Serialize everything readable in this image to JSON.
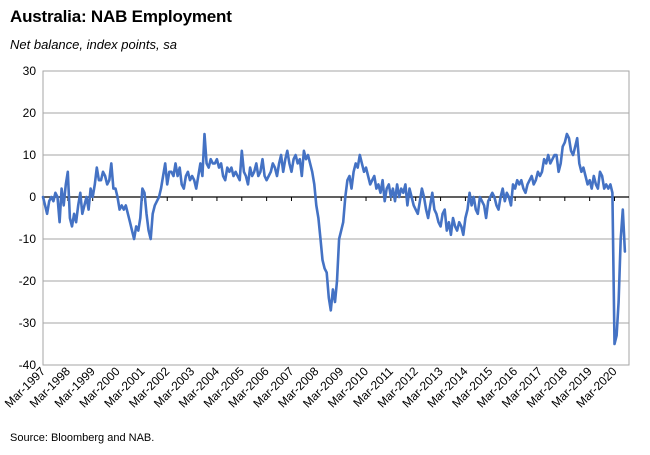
{
  "title": "Australia: NAB Employment",
  "subtitle": "Net balance, index points, sa",
  "source": "Source: Bloomberg and NAB.",
  "chart_data": {
    "type": "line",
    "title": "Australia: NAB Employment",
    "subtitle": "Net balance, index points, sa",
    "xlabel": "",
    "ylabel": "",
    "ylim": [
      -40,
      30
    ],
    "yticks": [
      -40,
      -30,
      -20,
      -10,
      0,
      10,
      20,
      30
    ],
    "xlim": [
      "1997-03",
      "2020-10"
    ],
    "grid": true,
    "legend": "none",
    "color": "#4472C4",
    "x_tick_labels": [
      "Mar-1997",
      "Mar-1998",
      "Mar-1999",
      "Mar-2000",
      "Mar-2001",
      "Mar-2002",
      "Mar-2003",
      "Mar-2004",
      "Mar-2005",
      "Mar-2006",
      "Mar-2007",
      "Mar-2008",
      "Mar-2009",
      "Mar-2010",
      "Mar-2011",
      "Mar-2012",
      "Mar-2013",
      "Mar-2014",
      "Mar-2015",
      "Mar-2016",
      "Mar-2017",
      "Mar-2018",
      "Mar-2019",
      "Mar-2020"
    ],
    "series": [
      {
        "start": "1997-03",
        "frequency": "monthly",
        "values": [
          0,
          -2,
          -4,
          -1,
          0,
          -1,
          1,
          0,
          -6,
          2,
          -2,
          3,
          6,
          -5,
          -7,
          -4,
          -6,
          -2,
          1,
          -4,
          -2,
          0,
          -3,
          2,
          0,
          3,
          7,
          4,
          4,
          6,
          5,
          3,
          4,
          8,
          2,
          2,
          0,
          -3,
          -2,
          -3,
          -2,
          -4,
          -6,
          -8,
          -10,
          -7,
          -8,
          -5,
          2,
          1,
          -4,
          -8,
          -10,
          -4,
          -2,
          -1,
          0,
          2,
          5,
          8,
          3,
          6,
          6,
          5,
          8,
          5,
          7,
          3,
          2,
          5,
          6,
          4,
          5,
          4,
          2,
          5,
          8,
          5,
          15,
          8,
          7,
          9,
          8,
          8,
          9,
          7,
          8,
          5,
          4,
          7,
          6,
          7,
          5,
          6,
          5,
          4,
          11,
          6,
          5,
          3,
          7,
          5,
          6,
          8,
          5,
          6,
          9,
          5,
          4,
          5,
          6,
          8,
          7,
          5,
          8,
          10,
          6,
          9,
          11,
          8,
          6,
          9,
          10,
          8,
          9,
          5,
          11,
          9,
          10,
          8,
          6,
          3,
          -2,
          -5,
          -10,
          -15,
          -17,
          -18,
          -24,
          -27,
          -22,
          -25,
          -20,
          -10,
          -8,
          -6,
          0,
          4,
          5,
          2,
          6,
          8,
          7,
          10,
          8,
          6,
          7,
          5,
          3,
          4,
          5,
          2,
          3,
          1,
          4,
          -1,
          2,
          3,
          0,
          2,
          -1,
          3,
          0,
          2,
          1,
          3,
          -2,
          2,
          0,
          -2,
          -3,
          -4,
          -1,
          2,
          0,
          -3,
          -5,
          -2,
          1,
          -3,
          -4,
          -6,
          -7,
          -4,
          -3,
          -8,
          -6,
          -9,
          -5,
          -7,
          -8,
          -6,
          -7,
          -9,
          -5,
          -3,
          1,
          -2,
          0,
          -3,
          -4,
          0,
          -1,
          -2,
          -5,
          -1,
          0,
          1,
          0,
          -2,
          -3,
          0,
          2,
          -1,
          1,
          0,
          -2,
          3,
          2,
          4,
          3,
          4,
          2,
          1,
          3,
          4,
          5,
          3,
          4,
          6,
          5,
          6,
          9,
          8,
          10,
          8,
          9,
          10,
          10,
          6,
          8,
          12,
          13,
          15,
          14,
          11,
          10,
          12,
          14,
          8,
          6,
          7,
          5,
          3,
          4,
          2,
          5,
          3,
          2,
          6,
          5,
          2,
          3,
          2,
          3,
          1,
          -35,
          -33,
          -25,
          -10,
          -3,
          -13
        ]
      }
    ]
  }
}
